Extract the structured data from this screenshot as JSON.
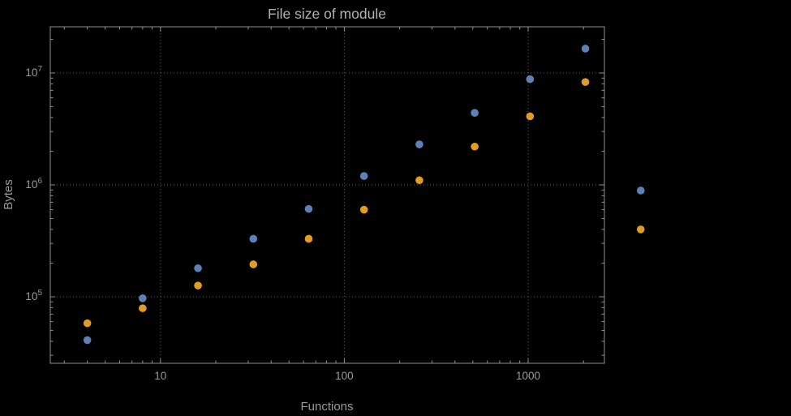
{
  "window": {
    "background": "#000000"
  },
  "colors": {
    "background": "#000000",
    "frame": "#8f8f8f",
    "grid": "#5f5f5f",
    "tick": "#8f8f8f",
    "tick_label_text": "#9a9a9a",
    "title_text": "#b2b2b2",
    "series_blue": "#5E81B5",
    "series_orange": "#E19C24"
  },
  "chart_data": {
    "type": "scatter",
    "title": "File size of module",
    "xlabel": "Functions",
    "ylabel": "Bytes",
    "x_scale": "log",
    "y_scale": "log",
    "grid": true,
    "legend": "none",
    "xlim": [
      2.5,
      2600
    ],
    "ylim": [
      25500,
      26000000
    ],
    "x_ticks": [
      10,
      100,
      1000
    ],
    "x_tick_labels": [
      "10",
      "100",
      "1000"
    ],
    "y_ticks": [
      100000,
      1000000,
      10000000
    ],
    "y_tick_labels": [
      "10^5",
      "10^6",
      "10^7"
    ],
    "y_tick_exponents": [
      5,
      6,
      7
    ],
    "note": "points at x=4096 plotted outside right edge of frame (no clipping)",
    "series": [
      {
        "name": "series_1",
        "color": "#5E81B5",
        "x": [
          4,
          8,
          16,
          32,
          64,
          128,
          256,
          512,
          1024,
          2048,
          4096
        ],
        "y": [
          41000,
          97000,
          180000,
          330000,
          610000,
          1200000,
          2300000,
          4400000,
          8800000,
          16500000,
          890000
        ]
      },
      {
        "name": "series_2",
        "color": "#E19C24",
        "x": [
          4,
          8,
          16,
          32,
          64,
          128,
          256,
          512,
          1024,
          2048,
          4096
        ],
        "y": [
          58000,
          79000,
          126000,
          195000,
          330000,
          600000,
          1100000,
          2200000,
          4100000,
          8300000,
          400000
        ]
      }
    ]
  }
}
